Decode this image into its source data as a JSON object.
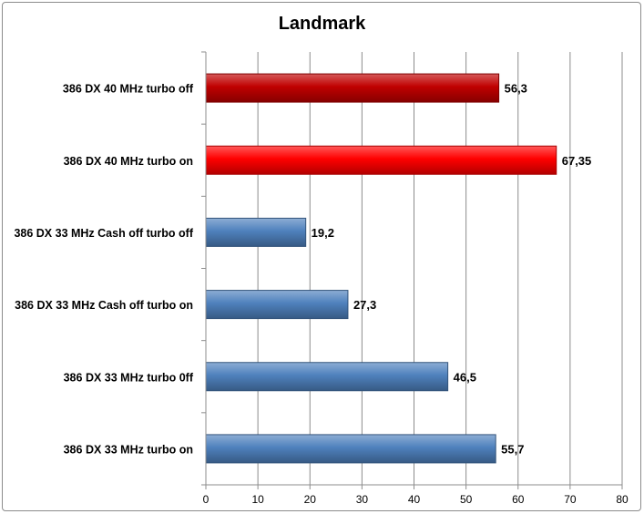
{
  "chart_data": {
    "type": "bar",
    "orientation": "horizontal",
    "title": "Landmark",
    "categories": [
      "386 DX 40 MHz turbo off",
      "386 DX 40 MHz turbo on",
      "386 DX 33 MHz Cash off turbo off",
      "386 DX 33 MHz Cash off turbo on",
      "386 DX 33 MHz turbo 0ff",
      "386 DX 33 MHz turbo on"
    ],
    "values": [
      56.3,
      67.35,
      19.2,
      27.3,
      46.5,
      55.7
    ],
    "value_labels": [
      "56,3",
      "67,35",
      "19,2",
      "27,3",
      "46,5",
      "55,7"
    ],
    "bar_colors": [
      "#c00000",
      "#ff0000",
      "#4f81bd",
      "#4f81bd",
      "#4f81bd",
      "#4f81bd"
    ],
    "xlim": [
      0,
      80
    ],
    "xticks": [
      0,
      10,
      20,
      30,
      40,
      50,
      60,
      70,
      80
    ],
    "xtick_labels": [
      "0",
      "10",
      "20",
      "30",
      "40",
      "50",
      "60",
      "70",
      "80"
    ],
    "grid": true,
    "legend": "none",
    "xlabel": "",
    "ylabel": ""
  }
}
